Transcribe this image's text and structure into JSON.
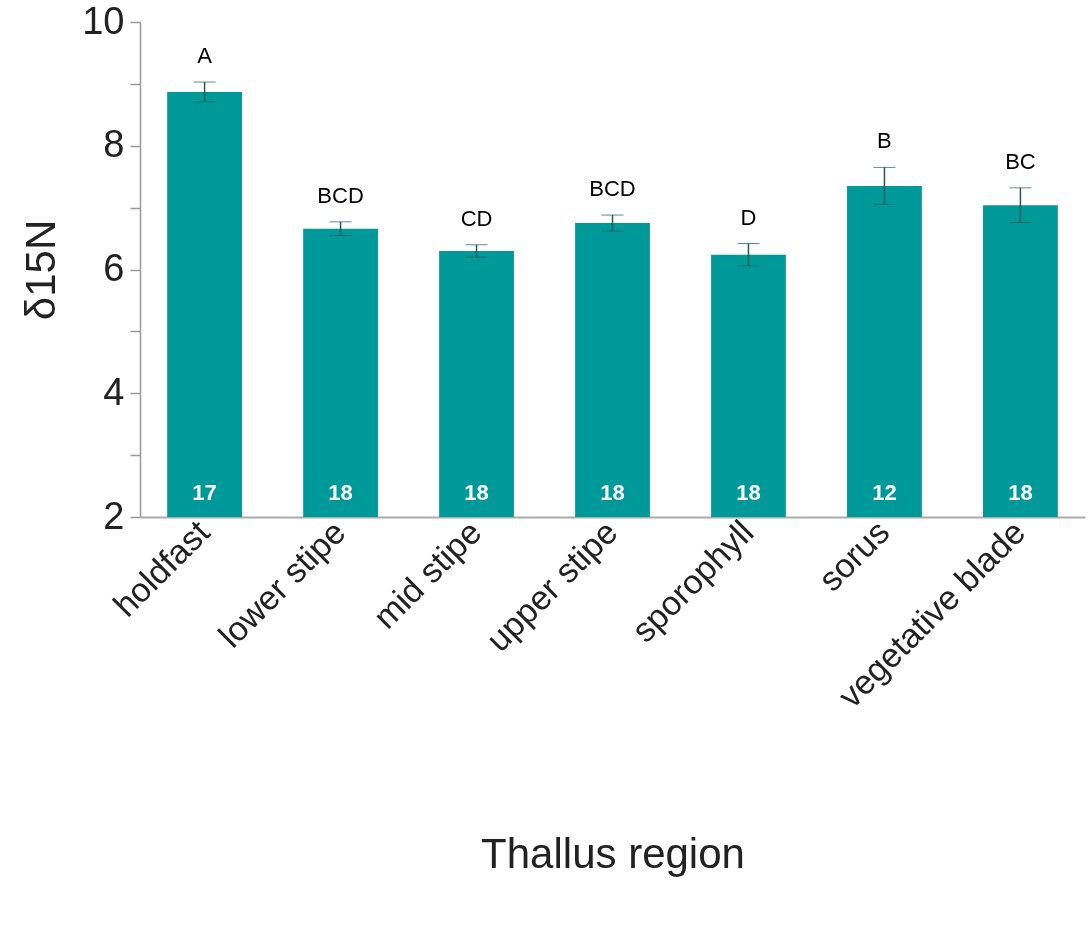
{
  "chart_data": {
    "type": "bar",
    "xlabel": "Thallus region",
    "ylabel": "δ15N",
    "categories": [
      "holdfast",
      "lower stipe",
      "mid stipe",
      "upper stipe",
      "sporophyll",
      "sorus",
      "vegetative blade"
    ],
    "values": [
      8.87,
      6.66,
      6.3,
      6.75,
      6.24,
      7.35,
      7.04
    ],
    "errors": [
      0.16,
      0.11,
      0.1,
      0.13,
      0.18,
      0.3,
      0.28
    ],
    "color": "#009999",
    "ylim": [
      2,
      10
    ],
    "yticks": [
      2,
      {
        "value": 3,
        "label": null
      },
      4,
      {
        "value": 5,
        "label": null
      },
      6,
      {
        "value": 7,
        "label": null
      },
      8,
      {
        "value": 9,
        "label": null
      },
      10
    ],
    "grid": false,
    "annotations": [
      {
        "text": "A",
        "x": "holdfast",
        "y": 9.03
      },
      {
        "text": "BCD",
        "x": "lower stipe",
        "y": 6.77
      },
      {
        "text": "CD",
        "x": "mid stipe",
        "y": 6.4
      },
      {
        "text": "BCD",
        "x": "upper stipe",
        "y": 6.88
      },
      {
        "text": "D",
        "x": "sporophyll",
        "y": 6.42
      },
      {
        "text": "B",
        "x": "sorus",
        "y": 7.65
      },
      {
        "text": "BC",
        "x": "vegetative blade",
        "y": 7.32
      },
      "17",
      "18",
      "18",
      "18",
      "18",
      "12",
      "18"
    ]
  }
}
